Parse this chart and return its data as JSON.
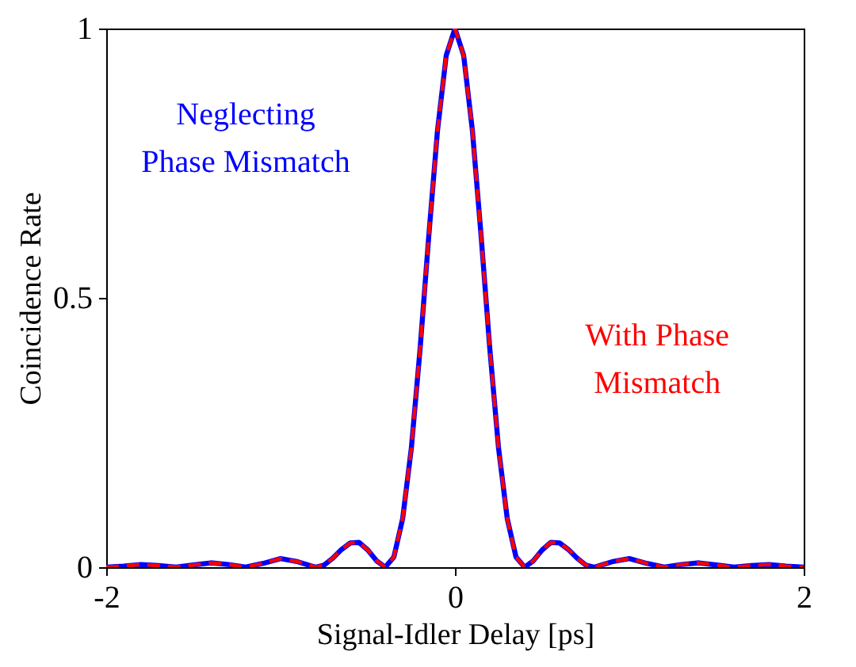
{
  "chart_data": {
    "type": "line",
    "xlabel": "Signal-Idler Delay [ps]",
    "ylabel": "Coincidence Rate",
    "x": [
      -2,
      -1.9,
      -1.8,
      -1.7,
      -1.6,
      -1.5,
      -1.4,
      -1.3,
      -1.2,
      -1.1,
      -1,
      -0.9,
      -0.8,
      -0.75,
      -0.7,
      -0.65,
      -0.6,
      -0.55,
      -0.5,
      -0.45,
      -0.4,
      -0.35,
      -0.3,
      -0.25,
      -0.2,
      -0.15,
      -0.1,
      -0.05,
      0,
      0.05,
      0.1,
      0.15,
      0.2,
      0.25,
      0.3,
      0.35,
      0.4,
      0.45,
      0.5,
      0.55,
      0.6,
      0.65,
      0.7,
      0.75,
      0.8,
      0.9,
      1,
      1.1,
      1.2,
      1.3,
      1.4,
      1.5,
      1.6,
      1.7,
      1.8,
      1.9,
      2
    ],
    "series": [
      {
        "name": "Neglecting\nPhase Mismatch",
        "color": "#0000ff",
        "line_style": "solid",
        "values": [
          0,
          0.002,
          0.005,
          0.003,
          0,
          0.004,
          0.008,
          0.005,
          0,
          0.007,
          0.016,
          0.01,
          0,
          0.004,
          0.017,
          0.033,
          0.045,
          0.046,
          0.032,
          0.012,
          0,
          0.019,
          0.09,
          0.221,
          0.405,
          0.615,
          0.811,
          0.95,
          1,
          0.95,
          0.811,
          0.615,
          0.405,
          0.221,
          0.09,
          0.019,
          0,
          0.012,
          0.032,
          0.046,
          0.045,
          0.033,
          0.017,
          0.004,
          0,
          0.01,
          0.016,
          0.007,
          0,
          0.005,
          0.008,
          0.004,
          0,
          0.003,
          0.005,
          0.002,
          0
        ]
      },
      {
        "name": "With Phase\nMismatch",
        "color": "#ff0000",
        "line_style": "dashed",
        "values": [
          0,
          0.002,
          0.005,
          0.003,
          0,
          0.004,
          0.008,
          0.005,
          0,
          0.007,
          0.016,
          0.01,
          0,
          0.004,
          0.017,
          0.033,
          0.045,
          0.046,
          0.032,
          0.012,
          0,
          0.019,
          0.09,
          0.221,
          0.405,
          0.615,
          0.811,
          0.95,
          1,
          0.95,
          0.811,
          0.615,
          0.405,
          0.221,
          0.09,
          0.019,
          0,
          0.012,
          0.032,
          0.046,
          0.045,
          0.033,
          0.017,
          0.004,
          0,
          0.01,
          0.016,
          0.007,
          0,
          0.005,
          0.008,
          0.004,
          0,
          0.003,
          0.005,
          0.002,
          0
        ]
      }
    ],
    "xlim": [
      -2,
      2
    ],
    "xticks": [
      -2,
      0,
      2
    ],
    "ylim": [
      0,
      1
    ],
    "yticks": [
      0,
      {
        "value": 0.5,
        "label": "0.5"
      },
      1
    ],
    "grid": false,
    "legend": false
  }
}
